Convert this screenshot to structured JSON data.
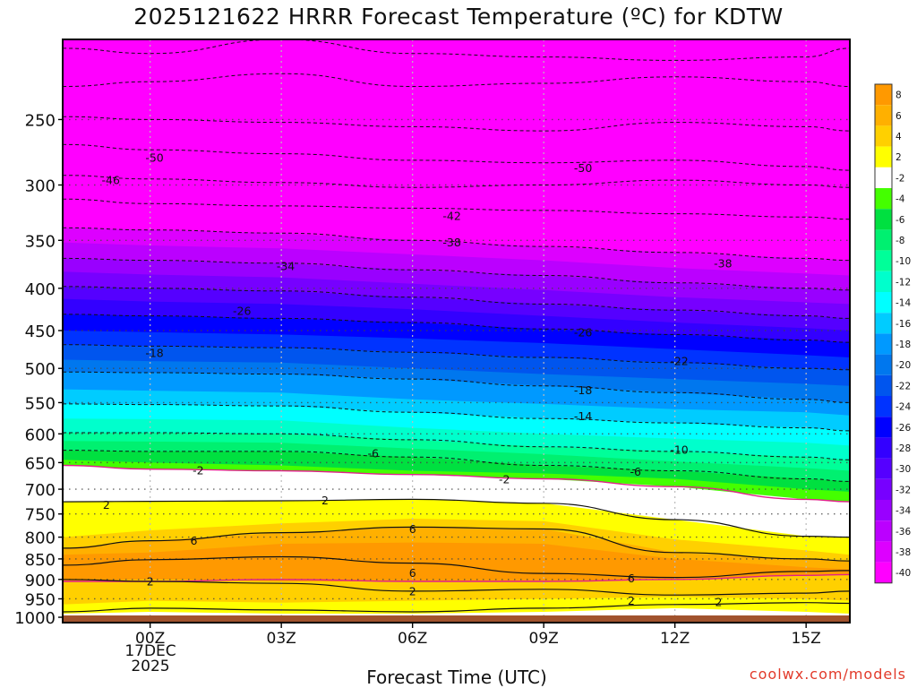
{
  "title": "2025121622 HRRR Forecast Temperature (ºC) for KDTW",
  "credit": "coolwx.com/models",
  "chart_data": {
    "type": "heatmap",
    "title": "2025121622 HRRR Forecast Temperature (ºC) for KDTW",
    "xlabel": "Forecast Time (UTC)",
    "ylabel": "",
    "x_ticks": [
      "00Z",
      "03Z",
      "06Z",
      "09Z",
      "12Z",
      "15Z"
    ],
    "x_tick_hours": [
      2,
      5,
      8,
      11,
      14,
      17
    ],
    "x_range_hours": [
      0,
      18
    ],
    "date_label": [
      "17DEC",
      "2025"
    ],
    "y_ticks": [
      250,
      300,
      350,
      400,
      450,
      500,
      550,
      600,
      650,
      700,
      750,
      800,
      850,
      900,
      950,
      1000
    ],
    "y_range_hpa": [
      200,
      1015
    ],
    "ground_level_hpa": 995,
    "hours": [
      0,
      2,
      5,
      8,
      11,
      14,
      17,
      18
    ],
    "contour_labels": [
      {
        "text": "-50",
        "hour": 2.1,
        "p": 278
      },
      {
        "text": "-46",
        "hour": 1.1,
        "p": 296
      },
      {
        "text": "-50",
        "hour": 11.9,
        "p": 286
      },
      {
        "text": "-42",
        "hour": 8.9,
        "p": 327
      },
      {
        "text": "-38",
        "hour": 8.9,
        "p": 352
      },
      {
        "text": "-34",
        "hour": 5.1,
        "p": 376
      },
      {
        "text": "-38",
        "hour": 15.1,
        "p": 373
      },
      {
        "text": "-26",
        "hour": 4.1,
        "p": 426
      },
      {
        "text": "-26",
        "hour": 11.9,
        "p": 452
      },
      {
        "text": "-18",
        "hour": 2.1,
        "p": 479
      },
      {
        "text": "-22",
        "hour": 14.1,
        "p": 490
      },
      {
        "text": "-18",
        "hour": 11.9,
        "p": 531
      },
      {
        "text": "-14",
        "hour": 11.9,
        "p": 571
      },
      {
        "text": "-10",
        "hour": 14.1,
        "p": 627
      },
      {
        "text": "-6",
        "hour": 7.1,
        "p": 633
      },
      {
        "text": "-6",
        "hour": 13.1,
        "p": 667
      },
      {
        "text": "-2",
        "hour": 3.1,
        "p": 664
      },
      {
        "text": "-2",
        "hour": 10.1,
        "p": 681
      },
      {
        "text": "2",
        "hour": 1.0,
        "p": 731
      },
      {
        "text": "2",
        "hour": 6.0,
        "p": 722
      },
      {
        "text": "6",
        "hour": 3.0,
        "p": 808
      },
      {
        "text": "6",
        "hour": 8.0,
        "p": 782
      },
      {
        "text": "2",
        "hour": 2.0,
        "p": 905
      },
      {
        "text": "6",
        "hour": 8.0,
        "p": 884
      },
      {
        "text": "2",
        "hour": 8.0,
        "p": 930
      },
      {
        "text": "6",
        "hour": 13.0,
        "p": 897
      },
      {
        "text": "2",
        "hour": 13.0,
        "p": 955
      },
      {
        "text": "2",
        "hour": 15.0,
        "p": 958
      }
    ],
    "color_scale": {
      "labels": [
        "8",
        "6",
        "4",
        "2",
        "-2",
        "-4",
        "-6",
        "-8",
        "-10",
        "-12",
        "-14",
        "-16",
        "-18",
        "-20",
        "-22",
        "-24",
        "-26",
        "-28",
        "-30",
        "-32",
        "-34",
        "-36",
        "-38",
        "-40"
      ],
      "colors": [
        "#ff9900",
        "#ffb000",
        "#ffd000",
        "#ffff00",
        "#ffffff",
        "#44ff00",
        "#00e040",
        "#00f070",
        "#00ff99",
        "#00ffcc",
        "#00ffff",
        "#00ccff",
        "#0099ff",
        "#0077ee",
        "#0055ee",
        "#0033ff",
        "#0000ff",
        "#3300ff",
        "#5500ff",
        "#7700ff",
        "#9900ff",
        "#bb00ff",
        "#dd00ff",
        "#ff00ff"
      ],
      "top_color": "#ff9900"
    },
    "ground_color": "#a0522d",
    "freezing_line_color": "#e0208a"
  }
}
